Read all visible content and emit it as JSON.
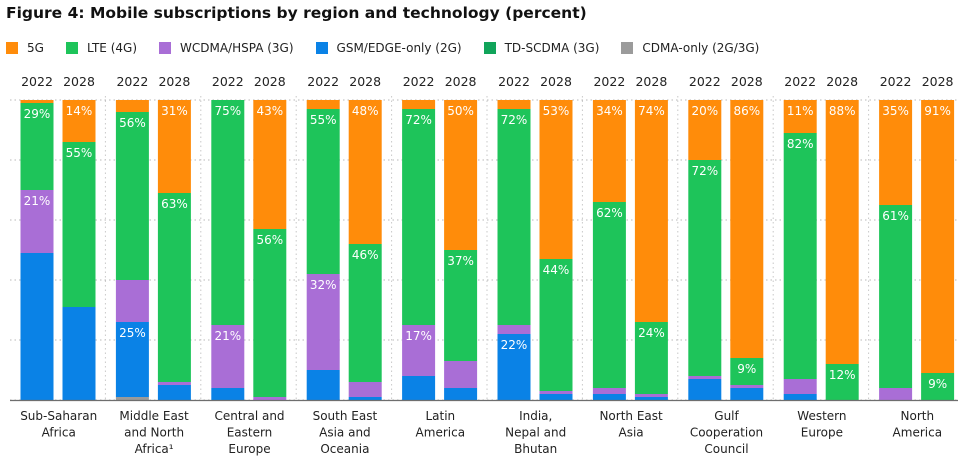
{
  "title": "Figure 4: Mobile subscriptions by region and technology (percent)",
  "colors": {
    "5g": "#ff8c0a",
    "lte": "#1ec45a",
    "wcdma": "#a96ed6",
    "gsm": "#0a82e6",
    "td": "#11a45a",
    "cdma": "#9b9b9b",
    "grid": "#b8b8b8",
    "axis": "#6e6e6e",
    "separator": "#c8c8c8"
  },
  "legend": [
    {
      "key": "5g",
      "label": "5G",
      "icon": "square-swatch"
    },
    {
      "key": "lte",
      "label": "LTE (4G)",
      "icon": "square-swatch"
    },
    {
      "key": "wcdma",
      "label": "WCDMA/HSPA (3G)",
      "icon": "square-swatch"
    },
    {
      "key": "gsm",
      "label": "GSM/EDGE-only (2G)",
      "icon": "square-swatch"
    },
    {
      "key": "td",
      "label": "TD-SCDMA (3G)",
      "icon": "square-swatch"
    },
    {
      "key": "cdma",
      "label": "CDMA-only (2G/3G)",
      "icon": "square-swatch"
    }
  ],
  "chart_data": {
    "type": "bar",
    "stacked": true,
    "ylim": [
      0,
      100
    ],
    "grid": true,
    "years": [
      "2022",
      "2028"
    ],
    "series_order_bottom_to_top": [
      "cdma",
      "gsm",
      "td",
      "wcdma",
      "lte",
      "5g"
    ],
    "groups": [
      {
        "name": [
          "Sub-Saharan",
          "Africa"
        ],
        "bars": [
          {
            "year": "2022",
            "cdma": 0,
            "gsm": 49,
            "td": 0,
            "wcdma": 21,
            "lte": 29,
            "5g": 1,
            "labels": {
              "lte": "29%",
              "wcdma": "21%"
            }
          },
          {
            "year": "2028",
            "cdma": 0,
            "gsm": 31,
            "td": 0,
            "wcdma": 0,
            "lte": 55,
            "5g": 14,
            "labels": {
              "5g": "14%",
              "lte": "55%"
            }
          }
        ]
      },
      {
        "name": [
          "Middle East",
          "and North",
          "Africa¹"
        ],
        "bars": [
          {
            "year": "2022",
            "cdma": 1,
            "gsm": 25,
            "td": 0,
            "wcdma": 14,
            "lte": 56,
            "5g": 4,
            "labels": {
              "lte": "56%",
              "gsm": "25%"
            }
          },
          {
            "year": "2028",
            "cdma": 0,
            "gsm": 5,
            "td": 0,
            "wcdma": 1,
            "lte": 63,
            "5g": 31,
            "labels": {
              "5g": "31%",
              "lte": "63%"
            }
          }
        ]
      },
      {
        "name": [
          "Central and",
          "Eastern",
          "Europe"
        ],
        "bars": [
          {
            "year": "2022",
            "cdma": 0,
            "gsm": 4,
            "td": 0,
            "wcdma": 21,
            "lte": 75,
            "5g": 0,
            "labels": {
              "lte": "75%",
              "wcdma": "21%"
            }
          },
          {
            "year": "2028",
            "cdma": 0,
            "gsm": 0,
            "td": 0,
            "wcdma": 1,
            "lte": 56,
            "5g": 43,
            "labels": {
              "5g": "43%",
              "lte": "56%"
            }
          }
        ]
      },
      {
        "name": [
          "South East",
          "Asia and",
          "Oceania"
        ],
        "bars": [
          {
            "year": "2022",
            "cdma": 0,
            "gsm": 10,
            "td": 0,
            "wcdma": 32,
            "lte": 55,
            "5g": 3,
            "labels": {
              "lte": "55%",
              "wcdma": "32%"
            }
          },
          {
            "year": "2028",
            "cdma": 0,
            "gsm": 1,
            "td": 0,
            "wcdma": 5,
            "lte": 46,
            "5g": 48,
            "labels": {
              "5g": "48%",
              "lte": "46%"
            }
          }
        ]
      },
      {
        "name": [
          "Latin",
          "America"
        ],
        "bars": [
          {
            "year": "2022",
            "cdma": 0,
            "gsm": 8,
            "td": 0,
            "wcdma": 17,
            "lte": 72,
            "5g": 3,
            "labels": {
              "lte": "72%",
              "wcdma": "17%"
            }
          },
          {
            "year": "2028",
            "cdma": 0,
            "gsm": 4,
            "td": 0,
            "wcdma": 9,
            "lte": 37,
            "5g": 50,
            "labels": {
              "5g": "50%",
              "lte": "37%"
            }
          }
        ]
      },
      {
        "name": [
          "India,",
          "Nepal and",
          "Bhutan"
        ],
        "bars": [
          {
            "year": "2022",
            "cdma": 0,
            "gsm": 22,
            "td": 0,
            "wcdma": 3,
            "lte": 72,
            "5g": 3,
            "labels": {
              "lte": "72%",
              "gsm": "22%"
            }
          },
          {
            "year": "2028",
            "cdma": 0,
            "gsm": 2,
            "td": 0,
            "wcdma": 1,
            "lte": 44,
            "5g": 53,
            "labels": {
              "5g": "53%",
              "lte": "44%"
            }
          }
        ]
      },
      {
        "name": [
          "North East",
          "Asia"
        ],
        "bars": [
          {
            "year": "2022",
            "cdma": 0,
            "gsm": 2,
            "td": 0,
            "wcdma": 2,
            "lte": 62,
            "5g": 34,
            "labels": {
              "5g": "34%",
              "lte": "62%"
            }
          },
          {
            "year": "2028",
            "cdma": 0,
            "gsm": 1,
            "td": 0,
            "wcdma": 1,
            "lte": 24,
            "5g": 74,
            "labels": {
              "5g": "74%",
              "lte": "24%"
            }
          }
        ]
      },
      {
        "name": [
          "Gulf",
          "Cooperation",
          "Council"
        ],
        "bars": [
          {
            "year": "2022",
            "cdma": 0,
            "gsm": 7,
            "td": 0,
            "wcdma": 1,
            "lte": 72,
            "5g": 20,
            "labels": {
              "5g": "20%",
              "lte": "72%"
            }
          },
          {
            "year": "2028",
            "cdma": 0,
            "gsm": 4,
            "td": 0,
            "wcdma": 1,
            "lte": 9,
            "5g": 86,
            "labels": {
              "5g": "86%",
              "lte": "9%"
            }
          }
        ]
      },
      {
        "name": [
          "Western",
          "Europe"
        ],
        "bars": [
          {
            "year": "2022",
            "cdma": 0,
            "gsm": 2,
            "td": 0,
            "wcdma": 5,
            "lte": 82,
            "5g": 11,
            "labels": {
              "5g": "11%",
              "lte": "82%"
            }
          },
          {
            "year": "2028",
            "cdma": 0,
            "gsm": 0,
            "td": 0,
            "wcdma": 0,
            "lte": 12,
            "5g": 88,
            "labels": {
              "5g": "88%",
              "lte": "12%"
            }
          }
        ]
      },
      {
        "name": [
          "North",
          "America"
        ],
        "bars": [
          {
            "year": "2022",
            "cdma": 0,
            "gsm": 0,
            "td": 0,
            "wcdma": 4,
            "lte": 61,
            "5g": 35,
            "labels": {
              "5g": "35%",
              "lte": "61%"
            }
          },
          {
            "year": "2028",
            "cdma": 0,
            "gsm": 0,
            "td": 0,
            "wcdma": 0,
            "lte": 9,
            "5g": 91,
            "labels": {
              "5g": "91%",
              "lte": "9%"
            }
          }
        ]
      }
    ]
  }
}
